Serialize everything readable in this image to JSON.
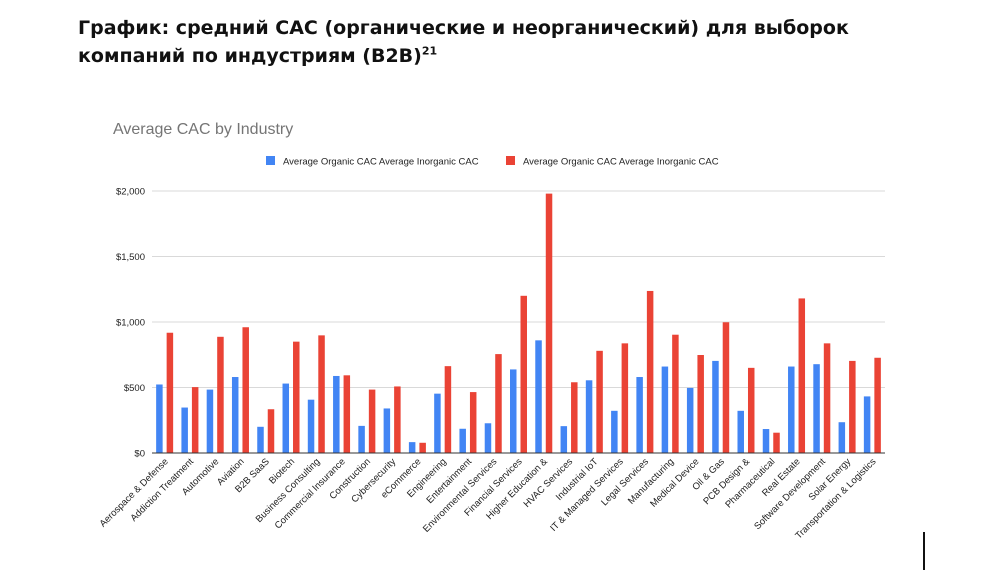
{
  "page": {
    "heading_text": "График: средний CAC (органические и неорганический) для выборок компаний по индустриям (B2B)",
    "heading_footnote": "21"
  },
  "chart_data": {
    "type": "bar",
    "title": "Average CAC by Industry",
    "xlabel": "",
    "ylabel": "",
    "ylim": [
      0,
      2000
    ],
    "yticks": [
      0,
      500,
      1000,
      1500,
      2000
    ],
    "ytick_labels": [
      "$0",
      "$500",
      "$1,000",
      "$1,500",
      "$2,000"
    ],
    "grid": true,
    "legend_position": "top-center",
    "categories": [
      "Aerospace & Defense",
      "Addiction Treatment",
      "Automotive",
      "Aviation",
      "B2B SaaS",
      "Biotech",
      "Business Consulting",
      "Commercial Insurance",
      "Construction",
      "Cybersecurity",
      "eCommerce",
      "Engineering",
      "Entertainment",
      "Environmental Services",
      "Financial Services",
      "Higher Education &",
      "HVAC Services",
      "Industrial IoT",
      "IT & Managed Services",
      "Legal Services",
      "Manufacturing",
      "Medical Device",
      "Oil & Gas",
      "PCB Design &",
      "Pharmaceutical",
      "Real Estate",
      "Software Development",
      "Solar Energy",
      "Transportation & Logistics"
    ],
    "series": [
      {
        "name": "Average Organic CAC Average Inorganic CAC",
        "color": "#4285f4",
        "values": [
          523,
          347,
          484,
          580,
          200,
          530,
          407,
          588,
          207,
          340,
          83,
          453,
          185,
          227,
          638,
          860,
          205,
          555,
          322,
          580,
          660,
          497,
          703,
          322,
          183,
          660,
          678,
          235,
          432
        ]
      },
      {
        "name": "Average Organic CAC Average Inorganic CAC",
        "color": "#ea4335",
        "values": [
          918,
          503,
          887,
          960,
          334,
          850,
          898,
          593,
          484,
          508,
          78,
          663,
          465,
          755,
          1200,
          1980,
          540,
          780,
          837,
          1237,
          903,
          748,
          998,
          650,
          155,
          1180,
          837,
          703,
          727
        ]
      }
    ]
  }
}
